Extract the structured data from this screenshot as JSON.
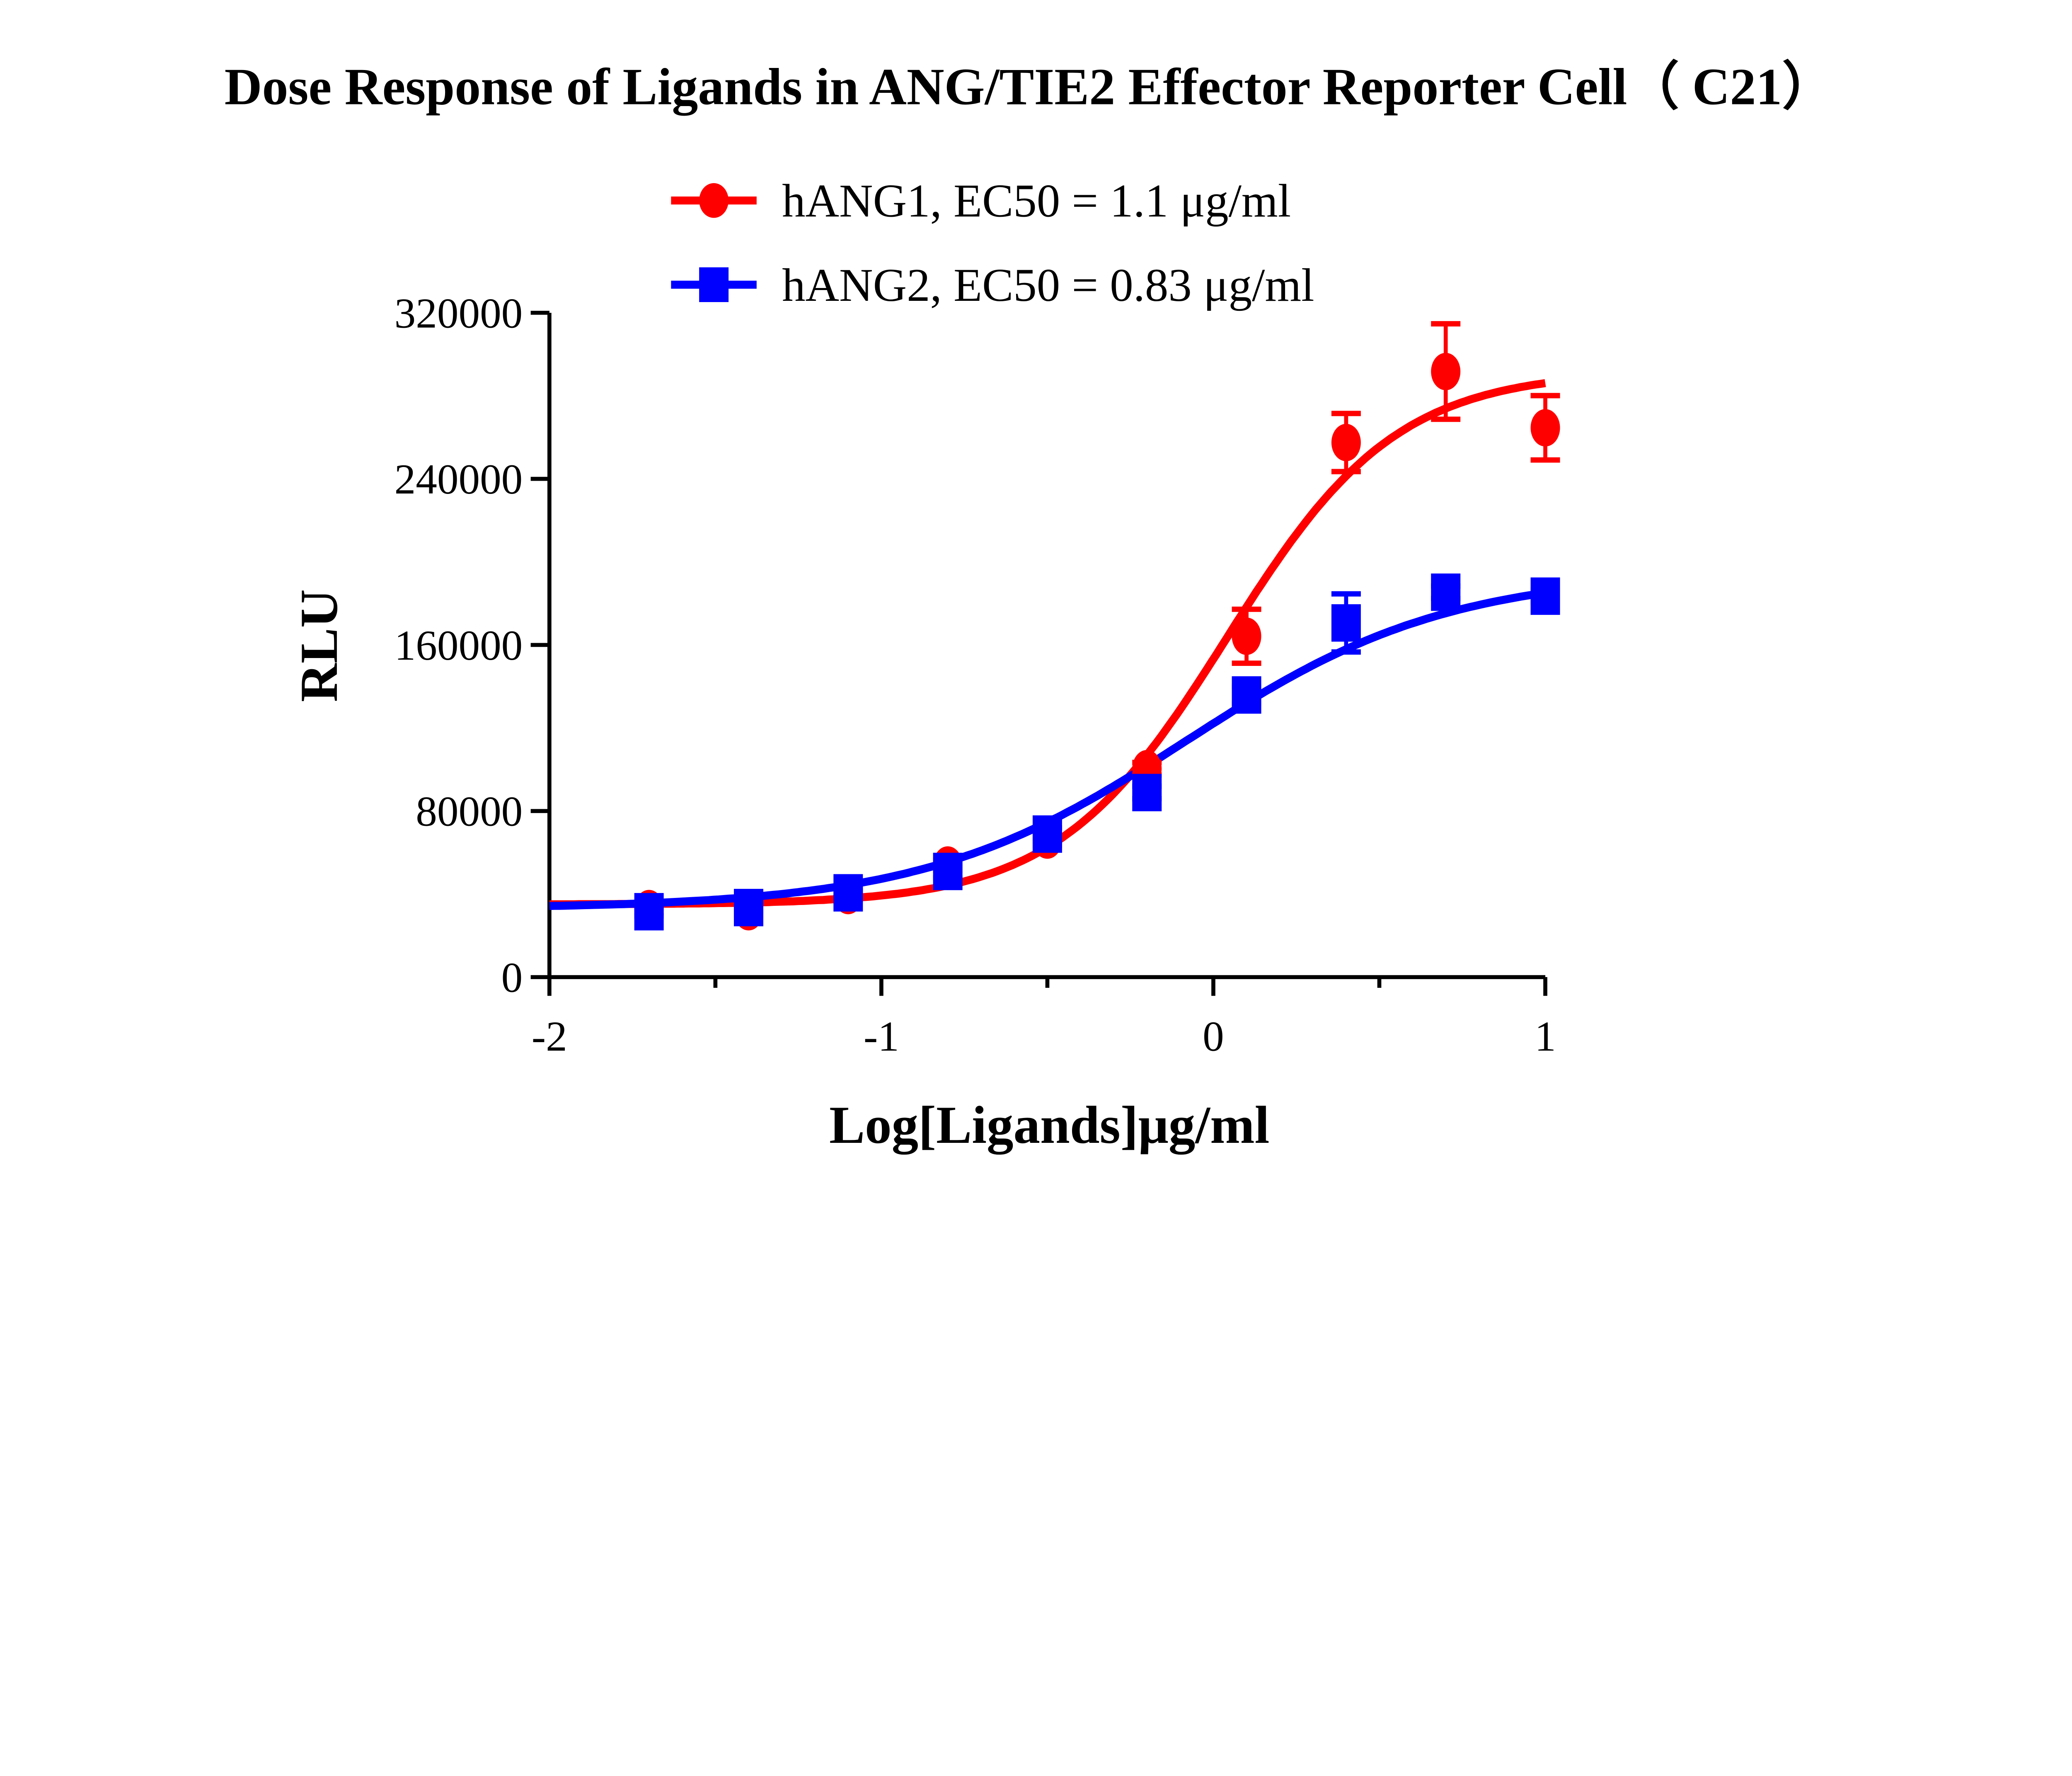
{
  "chart_data": {
    "type": "scatter",
    "title": "Dose Response of Ligands in ANG/TIE2 Effector Reporter Cell（ C21）",
    "xlabel": "Log[Ligands]μg/ml",
    "ylabel": "RLU",
    "xlim": [
      -2,
      1
    ],
    "ylim": [
      0,
      320000
    ],
    "xticks": [
      "-2",
      "-1",
      "0",
      "1"
    ],
    "yticks": [
      "0",
      "80000",
      "160000",
      "240000",
      "320000"
    ],
    "grid": false,
    "legend_position": "top",
    "series": [
      {
        "name": "hANG1, EC50 = 1.1 μg/ml",
        "color": "#ff0000",
        "marker": "circle",
        "x": [
          -1.7,
          -1.4,
          -1.1,
          -0.8,
          -0.5,
          -0.2,
          0.1,
          0.4,
          0.7,
          1.0
        ],
        "y": [
          33000,
          31500,
          39300,
          54000,
          66000,
          100400,
          164200,
          257500,
          291700,
          264600
        ],
        "err": [
          2000,
          2000,
          2000,
          2500,
          2500,
          3000,
          13000,
          14000,
          23000,
          15500
        ]
      },
      {
        "name": "hANG2, EC50 = 0.83 μg/ml",
        "color": "#0000ff",
        "marker": "square",
        "x": [
          -1.7,
          -1.4,
          -1.1,
          -0.8,
          -0.5,
          -0.2,
          0.1,
          0.4,
          0.7,
          1.0
        ],
        "y": [
          31500,
          33500,
          40600,
          50900,
          68900,
          88900,
          135900,
          170600,
          185400,
          183500
        ],
        "err": [
          2000,
          2000,
          2000,
          3000,
          3000,
          3000,
          4000,
          14000,
          3000,
          3000
        ]
      }
    ]
  }
}
